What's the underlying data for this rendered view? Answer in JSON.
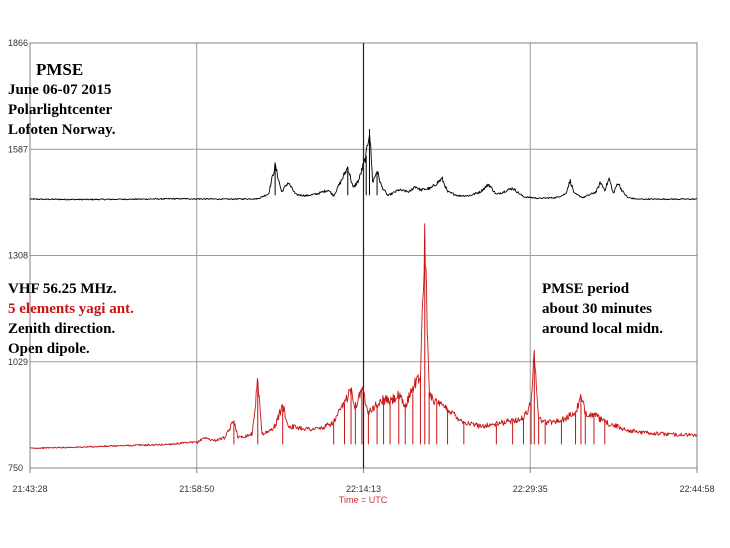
{
  "chart_data": {
    "type": "line",
    "title": "",
    "xlabel": "Time = UTC",
    "ylabel": "",
    "grid": true,
    "ylim": [
      750,
      1866
    ],
    "y_ticks": [
      "1866",
      "1587",
      "1308",
      "1029",
      "750"
    ],
    "x_ticks": [
      "21:43:28",
      "21:58:50",
      "22:14:13",
      "22:29:35",
      "22:44:58"
    ],
    "x_minutes_range": [
      0,
      61.5
    ],
    "series": [
      {
        "color": "#000000",
        "baseline": 1456,
        "points": [
          [
            0,
            1456
          ],
          [
            5,
            1455
          ],
          [
            10,
            1456
          ],
          [
            14,
            1457
          ],
          [
            18,
            1456
          ],
          [
            21,
            1457
          ],
          [
            22,
            1470
          ],
          [
            22.6,
            1545
          ],
          [
            23.2,
            1475
          ],
          [
            23.8,
            1500
          ],
          [
            24.5,
            1468
          ],
          [
            25.5,
            1465
          ],
          [
            26.5,
            1470
          ],
          [
            27.5,
            1480
          ],
          [
            28.0,
            1465
          ],
          [
            28.8,
            1510
          ],
          [
            29.3,
            1540
          ],
          [
            29.8,
            1485
          ],
          [
            30.3,
            1505
          ],
          [
            31.0,
            1570
          ],
          [
            31.3,
            1640
          ],
          [
            31.6,
            1500
          ],
          [
            32,
            1530
          ],
          [
            32.4,
            1490
          ],
          [
            33,
            1465
          ],
          [
            34,
            1480
          ],
          [
            35,
            1475
          ],
          [
            35.5,
            1490
          ],
          [
            36,
            1480
          ],
          [
            37,
            1485
          ],
          [
            38,
            1510
          ],
          [
            38.5,
            1475
          ],
          [
            39.5,
            1465
          ],
          [
            40.5,
            1465
          ],
          [
            41.5,
            1475
          ],
          [
            42.3,
            1495
          ],
          [
            43,
            1468
          ],
          [
            44.5,
            1485
          ],
          [
            45.5,
            1462
          ],
          [
            47,
            1458
          ],
          [
            48.5,
            1460
          ],
          [
            49.4,
            1470
          ],
          [
            49.8,
            1505
          ],
          [
            50.2,
            1470
          ],
          [
            51,
            1460
          ],
          [
            52.2,
            1475
          ],
          [
            52.6,
            1500
          ],
          [
            53,
            1480
          ],
          [
            53.4,
            1510
          ],
          [
            53.8,
            1470
          ],
          [
            54.2,
            1500
          ],
          [
            54.6,
            1478
          ],
          [
            55.1,
            1460
          ],
          [
            56,
            1456
          ],
          [
            58,
            1456
          ],
          [
            61.5,
            1456
          ]
        ]
      },
      {
        "color": "#c81414",
        "baseline": 802,
        "points": [
          [
            0,
            802
          ],
          [
            5,
            805
          ],
          [
            8,
            808
          ],
          [
            10,
            810
          ],
          [
            12,
            811
          ],
          [
            14,
            815
          ],
          [
            15.5,
            818
          ],
          [
            16,
            830
          ],
          [
            17,
            822
          ],
          [
            18,
            830
          ],
          [
            18.8,
            875
          ],
          [
            19.2,
            830
          ],
          [
            20,
            835
          ],
          [
            20.5,
            840
          ],
          [
            21.0,
            980
          ],
          [
            21.4,
            840
          ],
          [
            22,
            845
          ],
          [
            22.6,
            860
          ],
          [
            23.3,
            915
          ],
          [
            23.8,
            860
          ],
          [
            25,
            855
          ],
          [
            26,
            852
          ],
          [
            27.0,
            855
          ],
          [
            28,
            870
          ],
          [
            29,
            920
          ],
          [
            29.6,
            960
          ],
          [
            30,
            910
          ],
          [
            30.6,
            960
          ],
          [
            31.2,
            900
          ],
          [
            32,
            915
          ],
          [
            32.6,
            930
          ],
          [
            33.2,
            925
          ],
          [
            34,
            940
          ],
          [
            34.6,
            910
          ],
          [
            35.3,
            965
          ],
          [
            36.0,
            990
          ],
          [
            36.4,
            1350
          ],
          [
            36.8,
            950
          ],
          [
            37.5,
            920
          ],
          [
            38.5,
            905
          ],
          [
            40,
            870
          ],
          [
            41.5,
            860
          ],
          [
            43,
            865
          ],
          [
            44.5,
            875
          ],
          [
            45.5,
            880
          ],
          [
            46.2,
            920
          ],
          [
            46.5,
            1060
          ],
          [
            46.9,
            880
          ],
          [
            47.5,
            870
          ],
          [
            49,
            875
          ],
          [
            50.3,
            895
          ],
          [
            50.8,
            935
          ],
          [
            51.2,
            895
          ],
          [
            52,
            890
          ],
          [
            53,
            870
          ],
          [
            54,
            860
          ],
          [
            55,
            850
          ],
          [
            56,
            845
          ],
          [
            57,
            842
          ],
          [
            58,
            840
          ],
          [
            59.5,
            838
          ],
          [
            61.5,
            836
          ]
        ]
      }
    ]
  },
  "annotations": {
    "top_left": {
      "title": "PMSE",
      "line1": "June 06-07 2015",
      "line2": "Polarlightcenter",
      "line3": "Lofoten Norway."
    },
    "bottom_left": {
      "line1": "VHF 56.25 MHz.",
      "line2": "5 elements yagi ant.",
      "line3": "Zenith direction.",
      "line4": "Open dipole."
    },
    "bottom_right": {
      "line1": "PMSE period",
      "line2": "about 30 minutes",
      "line3": "around local midn."
    }
  }
}
